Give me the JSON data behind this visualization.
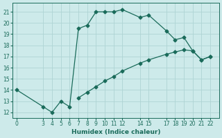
{
  "line1_x": [
    0,
    3,
    4,
    5,
    6,
    7,
    8,
    9,
    10,
    11,
    12,
    14,
    15,
    17,
    18,
    19,
    20,
    21,
    22
  ],
  "line1_y": [
    14.0,
    12.5,
    12.0,
    13.0,
    12.5,
    19.5,
    19.8,
    21.0,
    21.0,
    21.0,
    21.2,
    20.5,
    20.7,
    19.3,
    18.5,
    18.7,
    17.5,
    16.7,
    17.0
  ],
  "line2_x": [
    0,
    3,
    4,
    5,
    6,
    7,
    8,
    9,
    10,
    11,
    12,
    14,
    15,
    17,
    18,
    19,
    20,
    21,
    22
  ],
  "line2_y": [
    14.0,
    12.5,
    12.0,
    13.0,
    12.5,
    13.3,
    13.8,
    14.3,
    14.8,
    15.2,
    15.7,
    16.4,
    16.7,
    17.2,
    17.4,
    17.6,
    17.5,
    16.7,
    17.0
  ],
  "line_color": "#1a6b5a",
  "bg_color": "#cdeaea",
  "grid_color": "#aed4d4",
  "xlabel": "Humidex (Indice chaleur)",
  "ylim": [
    11.5,
    21.8
  ],
  "xlim": [
    -0.5,
    23.0
  ],
  "yticks": [
    12,
    13,
    14,
    15,
    16,
    17,
    18,
    19,
    20,
    21
  ],
  "xticks": [
    0,
    3,
    4,
    5,
    6,
    7,
    8,
    9,
    10,
    11,
    12,
    14,
    15,
    17,
    18,
    19,
    20,
    21,
    22
  ],
  "marker_size": 2.5,
  "linewidth": 0.9
}
